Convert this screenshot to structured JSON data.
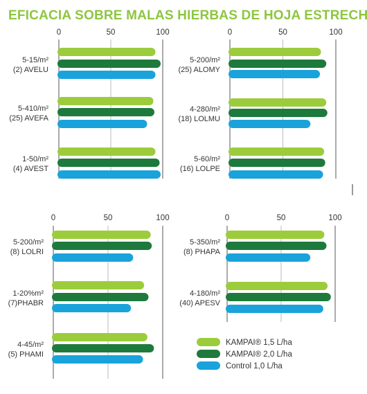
{
  "chart_data": {
    "type": "bar",
    "title": "EFICACIA SOBRE MALAS HIERBAS DE HOJA ESTRECHA:",
    "series": [
      {
        "name": "KAMPAI® 1,5 L/ha",
        "color": "#9ccc3c"
      },
      {
        "name": "KAMPAI® 2,0 L/ha",
        "color": "#1e7a3c"
      },
      {
        "name": "Control 1,0 L/ha",
        "color": "#1aa3db"
      }
    ],
    "panels": [
      {
        "xlim": [
          0,
          100
        ],
        "ticks": [
          "0",
          "50",
          "100"
        ],
        "categories": [
          {
            "lines": [
              "5-15/m²",
              "(2) AVELU"
            ],
            "values": [
              93,
              98,
              93
            ]
          },
          {
            "lines": [
              "5-410/m²",
              "(25) AVEFA"
            ],
            "values": [
              91,
              92,
              85
            ]
          },
          {
            "lines": [
              "1-50/m²",
              "(4) AVEST"
            ],
            "values": [
              93,
              97,
              98
            ]
          }
        ]
      },
      {
        "xlim": [
          0,
          100
        ],
        "ticks": [
          "0",
          "50",
          "100"
        ],
        "categories": [
          {
            "lines": [
              "5-200/m²",
              "(25) ALOMY"
            ],
            "values": [
              86,
              91,
              85
            ]
          },
          {
            "lines": [
              "4-280/m²",
              "(18) LOLMU"
            ],
            "values": [
              91,
              92,
              76
            ]
          },
          {
            "lines": [
              "5-60/m²",
              "(16) LOLPE"
            ],
            "values": [
              89,
              90,
              88
            ]
          }
        ]
      },
      {
        "xlim": [
          0,
          100
        ],
        "ticks": [
          "0",
          "50",
          "100"
        ],
        "categories": [
          {
            "lines": [
              "5-200/m²",
              "(8) LOLRI"
            ],
            "values": [
              89,
              90,
              73
            ]
          },
          {
            "lines": [
              "1-20%m²",
              "(7)PHABR"
            ],
            "values": [
              83,
              87,
              71
            ]
          },
          {
            "lines": [
              "4-45/m²",
              "(5) PHAMI"
            ],
            "values": [
              86,
              92,
              82
            ]
          }
        ]
      },
      {
        "xlim": [
          0,
          100
        ],
        "ticks": [
          "0",
          "50",
          "100"
        ],
        "categories": [
          {
            "lines": [
              "5-350/m²",
              "(8) PHAPA"
            ],
            "values": [
              90,
              92,
              77
            ]
          },
          {
            "lines": [
              "4-180/m²",
              "(40) APESV"
            ],
            "values": [
              93,
              96,
              89
            ]
          }
        ]
      }
    ]
  }
}
